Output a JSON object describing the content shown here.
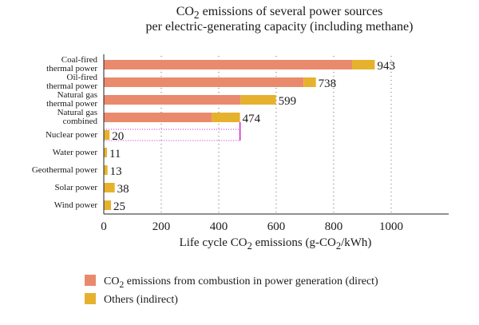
{
  "title": {
    "line1_pre": "CO",
    "line1_sub": "2",
    "line1_post": " emissions of several power sources",
    "line2": "per electric-generating capacity (including methane)"
  },
  "chart_data": {
    "type": "bar",
    "orientation": "horizontal",
    "stacked": true,
    "categories": [
      [
        "Coal-fired",
        "thermal power"
      ],
      [
        "Oil-fired",
        "thermal power"
      ],
      [
        "Natural gas",
        "thermal power"
      ],
      [
        "Natural gas",
        "combined"
      ],
      [
        "Nuclear power"
      ],
      [
        "Water power"
      ],
      [
        "Geothermal power"
      ],
      [
        "Solar power"
      ],
      [
        "Wind power"
      ]
    ],
    "series": [
      {
        "name": "CO2 emissions from combustion in power generation (direct)",
        "color": "#ea8a6d",
        "values": [
          864,
          695,
          476,
          376,
          0,
          0,
          0,
          0,
          0
        ]
      },
      {
        "name": "Others (indirect)",
        "color": "#e6b22e",
        "values": [
          79,
          43,
          123,
          98,
          20,
          11,
          13,
          38,
          25
        ]
      }
    ],
    "totals": [
      943,
      738,
      599,
      474,
      20,
      11,
      13,
      38,
      25
    ],
    "xticks": [
      0,
      200,
      400,
      600,
      800,
      1000
    ],
    "xlim": [
      0,
      1200
    ],
    "xlabel": {
      "pre": "Life cycle CO",
      "sub1": "2",
      "mid": " emissions (g-CO",
      "sub2": "2",
      "post": "/kWh)"
    },
    "grid": "vertical dotted",
    "reference_line_value": 474
  },
  "legend": {
    "direct": {
      "pre": "CO",
      "sub": "2",
      "post": " emissions from combustion in power generation (direct)",
      "color": "#ea8a6d"
    },
    "indirect": {
      "label": "Others (indirect)",
      "color": "#e6b22e"
    }
  },
  "colors": {
    "axis": "#222222",
    "grid": "#666666",
    "reference": "#d020d0"
  }
}
